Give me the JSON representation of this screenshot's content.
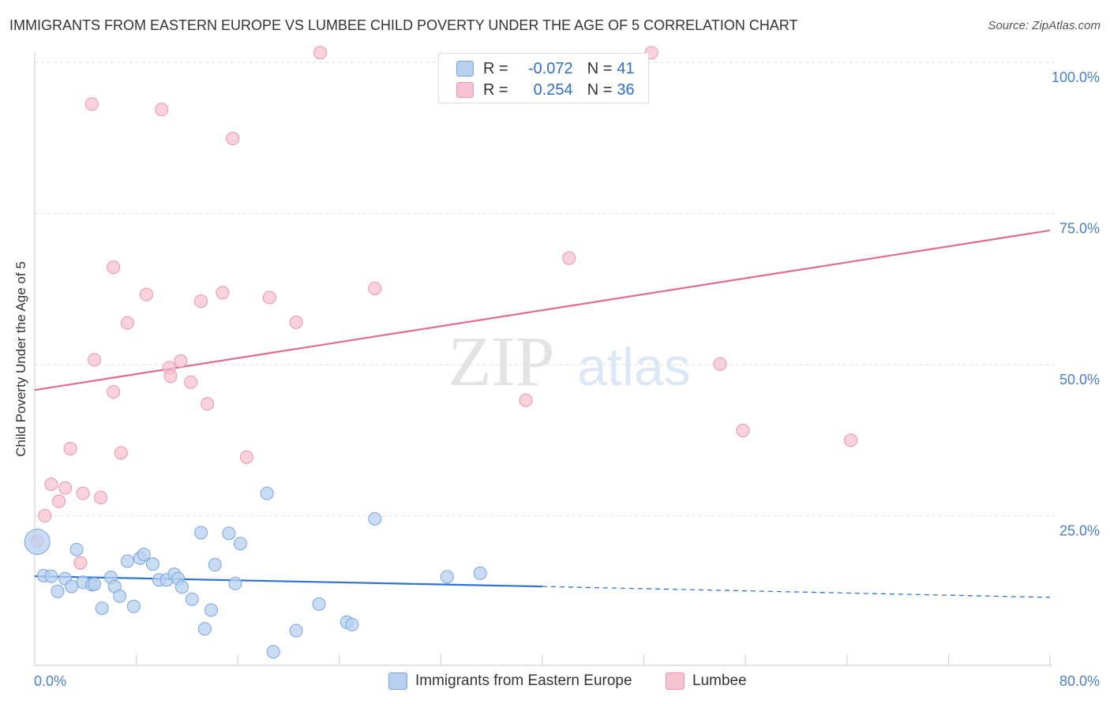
{
  "title": "IMMIGRANTS FROM EASTERN EUROPE VS LUMBEE CHILD POVERTY UNDER THE AGE OF 5 CORRELATION CHART",
  "source": "Source: ZipAtlas.com",
  "watermark": {
    "zip": "ZIP",
    "atlas": "atlas"
  },
  "legend": {
    "rows": [
      {
        "r_label": "R =",
        "r_value": "-0.072",
        "n_label": "N =",
        "n_value": "41"
      },
      {
        "r_label": "R =",
        "r_value": "0.254",
        "n_label": "N =",
        "n_value": "36"
      }
    ]
  },
  "bottom_legend": {
    "series_a": "Immigrants from Eastern Europe",
    "series_b": "Lumbee"
  },
  "colors": {
    "blue_fill": "#b8d0f0",
    "blue_stroke": "#7aa6dd",
    "blue_line": "#2f74d0",
    "pink_fill": "#f7c3d2",
    "pink_stroke": "#e994b0",
    "pink_line": "#e06b95",
    "axis_text": "#4a80c8",
    "grid": "#dddddd"
  },
  "chart_data": {
    "type": "scatter",
    "title": "IMMIGRANTS FROM EASTERN EUROPE VS LUMBEE CHILD POVERTY UNDER THE AGE OF 5 CORRELATION CHART",
    "xlabel": "",
    "ylabel": "Child Poverty Under the Age of 5",
    "xlim": [
      0,
      80
    ],
    "ylim": [
      0,
      100
    ],
    "x_tick_labels": [
      {
        "value": 0,
        "label": "0.0%"
      },
      {
        "value": 80,
        "label": "80.0%"
      }
    ],
    "y_tick_labels": [
      {
        "value": 25,
        "label": "25.0%"
      },
      {
        "value": 50,
        "label": "50.0%"
      },
      {
        "value": 75,
        "label": "75.0%"
      },
      {
        "value": 100,
        "label": "100.0%"
      }
    ],
    "grid": true,
    "series": [
      {
        "name": "Immigrants from Eastern Europe",
        "r": -0.072,
        "n": 41,
        "trend": {
          "x0": 0,
          "y0": 15.0,
          "x1": 40,
          "y1": 13.3,
          "dashed_to_x": 80,
          "dashed_to_y": 11.5
        },
        "points": [
          {
            "x": 0.2,
            "y": 20.7,
            "big": true
          },
          {
            "x": 0.7,
            "y": 15.1
          },
          {
            "x": 1.3,
            "y": 15.0
          },
          {
            "x": 1.8,
            "y": 12.5
          },
          {
            "x": 2.4,
            "y": 14.6
          },
          {
            "x": 2.9,
            "y": 13.3
          },
          {
            "x": 3.3,
            "y": 19.4
          },
          {
            "x": 3.8,
            "y": 14.0
          },
          {
            "x": 4.5,
            "y": 13.6
          },
          {
            "x": 4.7,
            "y": 13.7
          },
          {
            "x": 5.3,
            "y": 9.7
          },
          {
            "x": 6.0,
            "y": 14.8
          },
          {
            "x": 6.3,
            "y": 13.3
          },
          {
            "x": 6.7,
            "y": 11.7
          },
          {
            "x": 7.3,
            "y": 17.5
          },
          {
            "x": 7.8,
            "y": 10.0
          },
          {
            "x": 8.3,
            "y": 18.0
          },
          {
            "x": 8.6,
            "y": 18.6
          },
          {
            "x": 9.3,
            "y": 17.0
          },
          {
            "x": 9.8,
            "y": 14.4
          },
          {
            "x": 10.4,
            "y": 14.4
          },
          {
            "x": 11.0,
            "y": 15.3
          },
          {
            "x": 11.3,
            "y": 14.6
          },
          {
            "x": 11.6,
            "y": 13.2
          },
          {
            "x": 12.4,
            "y": 11.2
          },
          {
            "x": 13.1,
            "y": 22.2
          },
          {
            "x": 13.4,
            "y": 6.3
          },
          {
            "x": 13.9,
            "y": 9.4
          },
          {
            "x": 14.2,
            "y": 16.9
          },
          {
            "x": 15.3,
            "y": 22.1
          },
          {
            "x": 15.8,
            "y": 13.8
          },
          {
            "x": 16.2,
            "y": 20.4
          },
          {
            "x": 18.3,
            "y": 28.7
          },
          {
            "x": 18.8,
            "y": 2.5
          },
          {
            "x": 20.6,
            "y": 6.0
          },
          {
            "x": 22.4,
            "y": 10.4
          },
          {
            "x": 24.6,
            "y": 7.4
          },
          {
            "x": 25.0,
            "y": 7.0
          },
          {
            "x": 26.8,
            "y": 24.5
          },
          {
            "x": 32.5,
            "y": 14.9
          },
          {
            "x": 35.1,
            "y": 15.5
          }
        ]
      },
      {
        "name": "Lumbee",
        "r": 0.254,
        "n": 36,
        "trend": {
          "x0": 0,
          "y0": 45.8,
          "x1": 80,
          "y1": 72.2
        },
        "points": [
          {
            "x": 0.2,
            "y": 20.8
          },
          {
            "x": 0.8,
            "y": 25.0
          },
          {
            "x": 1.3,
            "y": 30.2
          },
          {
            "x": 1.9,
            "y": 27.4
          },
          {
            "x": 2.4,
            "y": 29.6
          },
          {
            "x": 2.8,
            "y": 36.1
          },
          {
            "x": 3.6,
            "y": 17.2
          },
          {
            "x": 3.8,
            "y": 28.7
          },
          {
            "x": 4.5,
            "y": 93.1
          },
          {
            "x": 4.7,
            "y": 50.8
          },
          {
            "x": 5.2,
            "y": 28.0
          },
          {
            "x": 6.2,
            "y": 66.1
          },
          {
            "x": 6.2,
            "y": 45.5
          },
          {
            "x": 6.8,
            "y": 35.4
          },
          {
            "x": 7.3,
            "y": 56.9
          },
          {
            "x": 8.8,
            "y": 61.6
          },
          {
            "x": 10.0,
            "y": 92.2
          },
          {
            "x": 10.6,
            "y": 49.5
          },
          {
            "x": 10.7,
            "y": 48.1
          },
          {
            "x": 11.5,
            "y": 50.6
          },
          {
            "x": 12.3,
            "y": 47.1
          },
          {
            "x": 13.1,
            "y": 60.5
          },
          {
            "x": 13.6,
            "y": 43.5
          },
          {
            "x": 14.8,
            "y": 61.9
          },
          {
            "x": 15.6,
            "y": 87.4
          },
          {
            "x": 16.7,
            "y": 34.7
          },
          {
            "x": 18.5,
            "y": 61.1
          },
          {
            "x": 20.6,
            "y": 57.0
          },
          {
            "x": 22.5,
            "y": 101.6
          },
          {
            "x": 26.8,
            "y": 62.6
          },
          {
            "x": 38.7,
            "y": 44.1
          },
          {
            "x": 42.1,
            "y": 67.6
          },
          {
            "x": 48.6,
            "y": 101.6
          },
          {
            "x": 54.0,
            "y": 50.1
          },
          {
            "x": 55.8,
            "y": 39.1
          },
          {
            "x": 64.3,
            "y": 37.5
          }
        ]
      }
    ]
  }
}
